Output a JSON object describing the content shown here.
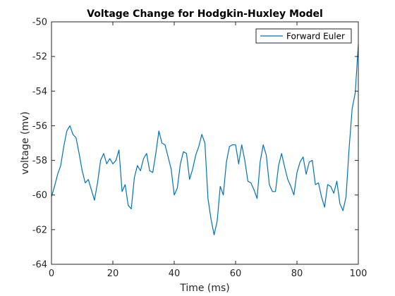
{
  "chart_data": {
    "type": "line",
    "title": "Voltage Change for Hodgkin-Huxley Model",
    "xlabel": "Time (ms)",
    "ylabel": "voltage (mv)",
    "xlim": [
      0,
      100
    ],
    "ylim": [
      -64,
      -50
    ],
    "xticks": [
      0,
      20,
      40,
      60,
      80,
      100
    ],
    "yticks": [
      -64,
      -62,
      -60,
      -58,
      -56,
      -54,
      -52,
      -50
    ],
    "grid": false,
    "legend_position": "top-right",
    "series": [
      {
        "name": "Forward Euler",
        "color": "#0072BD",
        "x": [
          0,
          1,
          2,
          3,
          4,
          5,
          6,
          7,
          8,
          9,
          10,
          11,
          12,
          13,
          14,
          15,
          16,
          17,
          18,
          19,
          20,
          21,
          22,
          23,
          24,
          25,
          26,
          27,
          28,
          29,
          30,
          31,
          32,
          33,
          34,
          35,
          36,
          37,
          38,
          39,
          40,
          41,
          42,
          43,
          44,
          45,
          46,
          47,
          48,
          49,
          50,
          51,
          52,
          53,
          54,
          55,
          56,
          57,
          58,
          59,
          60,
          61,
          62,
          63,
          64,
          65,
          66,
          67,
          68,
          69,
          70,
          71,
          72,
          73,
          74,
          75,
          76,
          77,
          78,
          79,
          80,
          81,
          82,
          83,
          84,
          85,
          86,
          87,
          88,
          89,
          90,
          91,
          92,
          93,
          94,
          95,
          96,
          97,
          98,
          99,
          100
        ],
        "y": [
          -60.1,
          -59.5,
          -58.8,
          -58.3,
          -57.2,
          -56.3,
          -56.0,
          -56.5,
          -56.7,
          -57.6,
          -58.6,
          -59.3,
          -59.1,
          -59.7,
          -60.3,
          -59.3,
          -58.0,
          -57.6,
          -58.2,
          -57.9,
          -58.2,
          -58.0,
          -57.4,
          -59.8,
          -59.4,
          -60.6,
          -60.8,
          -59.0,
          -58.3,
          -58.6,
          -57.9,
          -57.6,
          -58.6,
          -58.7,
          -57.6,
          -56.3,
          -57.0,
          -57.1,
          -57.8,
          -58.5,
          -60.0,
          -59.6,
          -58.2,
          -57.5,
          -57.6,
          -59.1,
          -58.5,
          -57.7,
          -57.2,
          -56.5,
          -57.0,
          -60.2,
          -61.4,
          -62.3,
          -61.5,
          -59.5,
          -60.0,
          -58.1,
          -57.2,
          -57.1,
          -57.1,
          -58.2,
          -57.1,
          -58.0,
          -59.2,
          -59.3,
          -59.7,
          -60.2,
          -58.1,
          -57.1,
          -57.7,
          -59.4,
          -59.8,
          -59.8,
          -58.3,
          -57.6,
          -58.4,
          -59.1,
          -59.5,
          -60.0,
          -58.7,
          -58.1,
          -57.8,
          -58.8,
          -58.1,
          -58.0,
          -59.4,
          -59.3,
          -60.1,
          -60.7,
          -59.4,
          -59.5,
          -59.9,
          -59.2,
          -60.5,
          -60.9,
          -60.1,
          -57.3,
          -55.0,
          -54.1,
          -51.3
        ]
      }
    ]
  }
}
